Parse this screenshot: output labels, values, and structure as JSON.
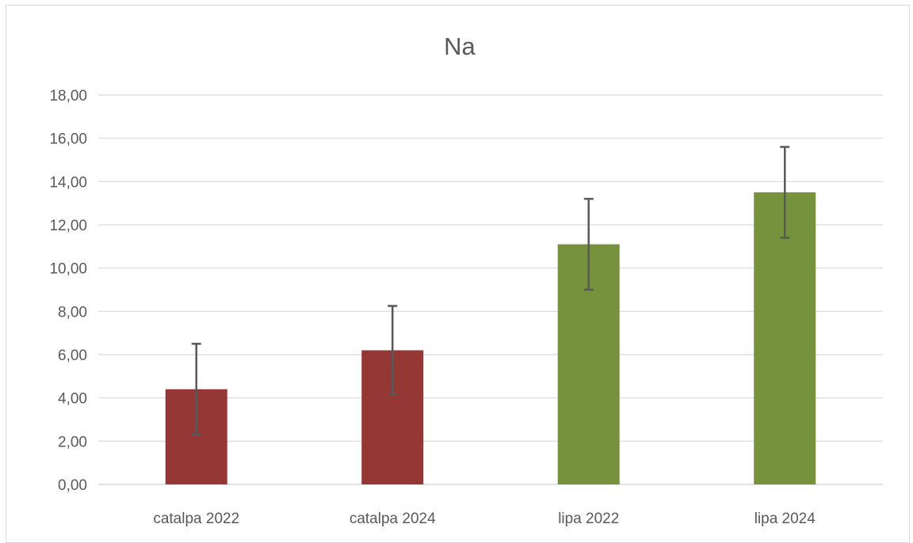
{
  "chart_data": {
    "type": "bar",
    "title": "Na",
    "xlabel": "",
    "ylabel": "",
    "categories": [
      "catalpa 2022",
      "catalpa 2024",
      "lipa 2022",
      "lipa 2024"
    ],
    "values": [
      4.4,
      6.2,
      11.1,
      13.5
    ],
    "error": [
      2.1,
      2.05,
      2.1,
      2.1
    ],
    "colors": [
      "#953735",
      "#953735",
      "#76923c",
      "#76923c"
    ],
    "error_color": "#595959",
    "ylim": [
      0,
      18
    ],
    "yticks": [
      "0,00",
      "2,00",
      "4,00",
      "6,00",
      "8,00",
      "10,00",
      "12,00",
      "14,00",
      "16,00",
      "18,00"
    ],
    "grid": true,
    "legend": "none"
  }
}
